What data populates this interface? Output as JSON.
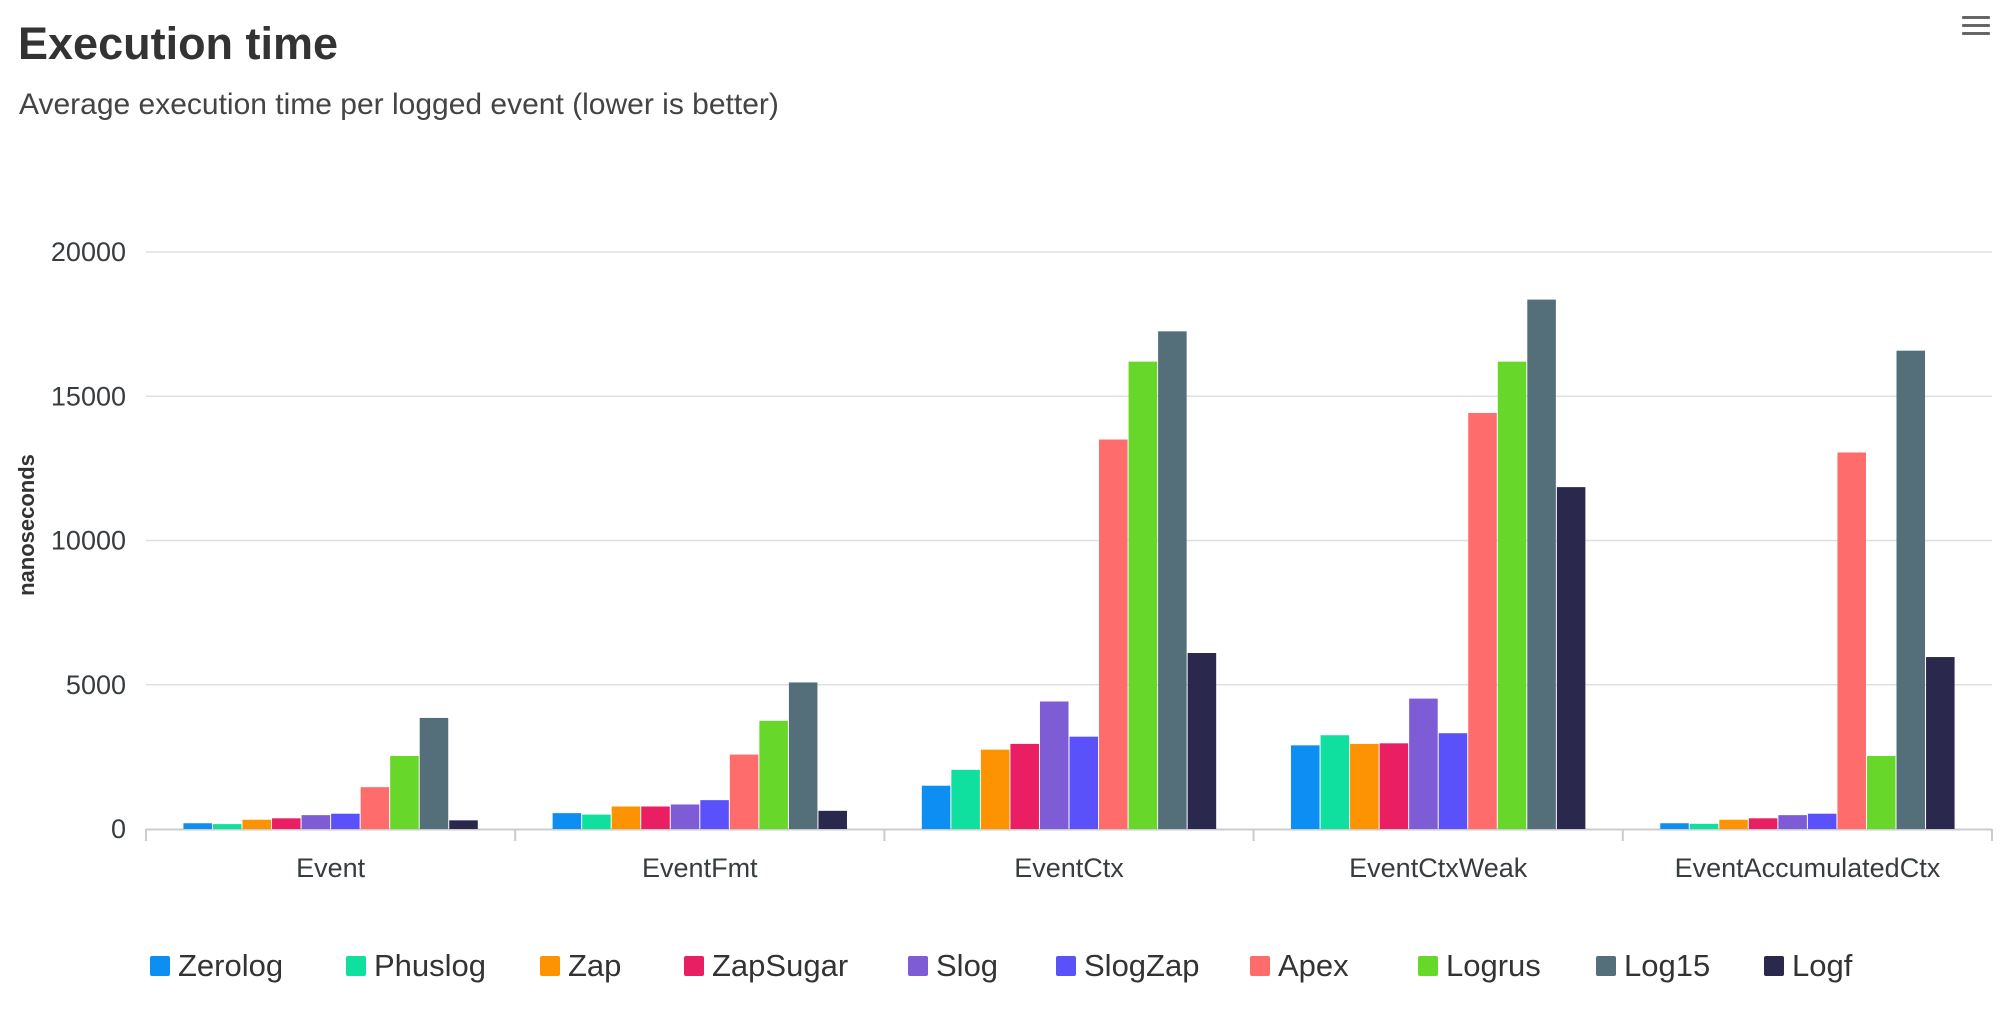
{
  "header": {
    "title": "Execution time",
    "subtitle": "Average execution time per logged event (lower is better)",
    "menu_icon": "hamburger-menu-icon"
  },
  "chart_data": {
    "type": "bar",
    "title": "Execution time",
    "subtitle": "Average execution time per logged event (lower is better)",
    "xlabel": "",
    "ylabel": "nanoseconds",
    "ylim": [
      0,
      20000
    ],
    "yticks": [
      "0",
      "5000",
      "10000",
      "15000",
      "20000"
    ],
    "grid": true,
    "legend_position": "bottom",
    "categories": [
      "Event",
      "EventFmt",
      "EventCtx",
      "EventCtxWeak",
      "EventAccumulatedCtx"
    ],
    "series": [
      {
        "name": "Zerolog",
        "color": "#0d8ef2",
        "values": [
          200,
          550,
          1500,
          2900,
          200
        ]
      },
      {
        "name": "Phuslog",
        "color": "#0fe0a0",
        "values": [
          170,
          500,
          2050,
          3250,
          180
        ]
      },
      {
        "name": "Zap",
        "color": "#fd9303",
        "values": [
          320,
          780,
          2750,
          2950,
          320
        ]
      },
      {
        "name": "ZapSugar",
        "color": "#e91e63",
        "values": [
          370,
          780,
          2950,
          2970,
          370
        ]
      },
      {
        "name": "Slog",
        "color": "#7d5cd6",
        "values": [
          480,
          850,
          4420,
          4520,
          480
        ]
      },
      {
        "name": "SlogZap",
        "color": "#5b51fa",
        "values": [
          530,
          1000,
          3200,
          3320,
          530
        ]
      },
      {
        "name": "Apex",
        "color": "#fe6c6c",
        "values": [
          1450,
          2580,
          13500,
          14420,
          13050
        ]
      },
      {
        "name": "Logrus",
        "color": "#67d829",
        "values": [
          2530,
          3750,
          16200,
          16200,
          2530
        ]
      },
      {
        "name": "Log15",
        "color": "#546e7a",
        "values": [
          3850,
          5080,
          17250,
          18350,
          16580
        ]
      },
      {
        "name": "Logf",
        "color": "#2b284d",
        "values": [
          300,
          630,
          6100,
          11850,
          5960
        ]
      }
    ]
  }
}
